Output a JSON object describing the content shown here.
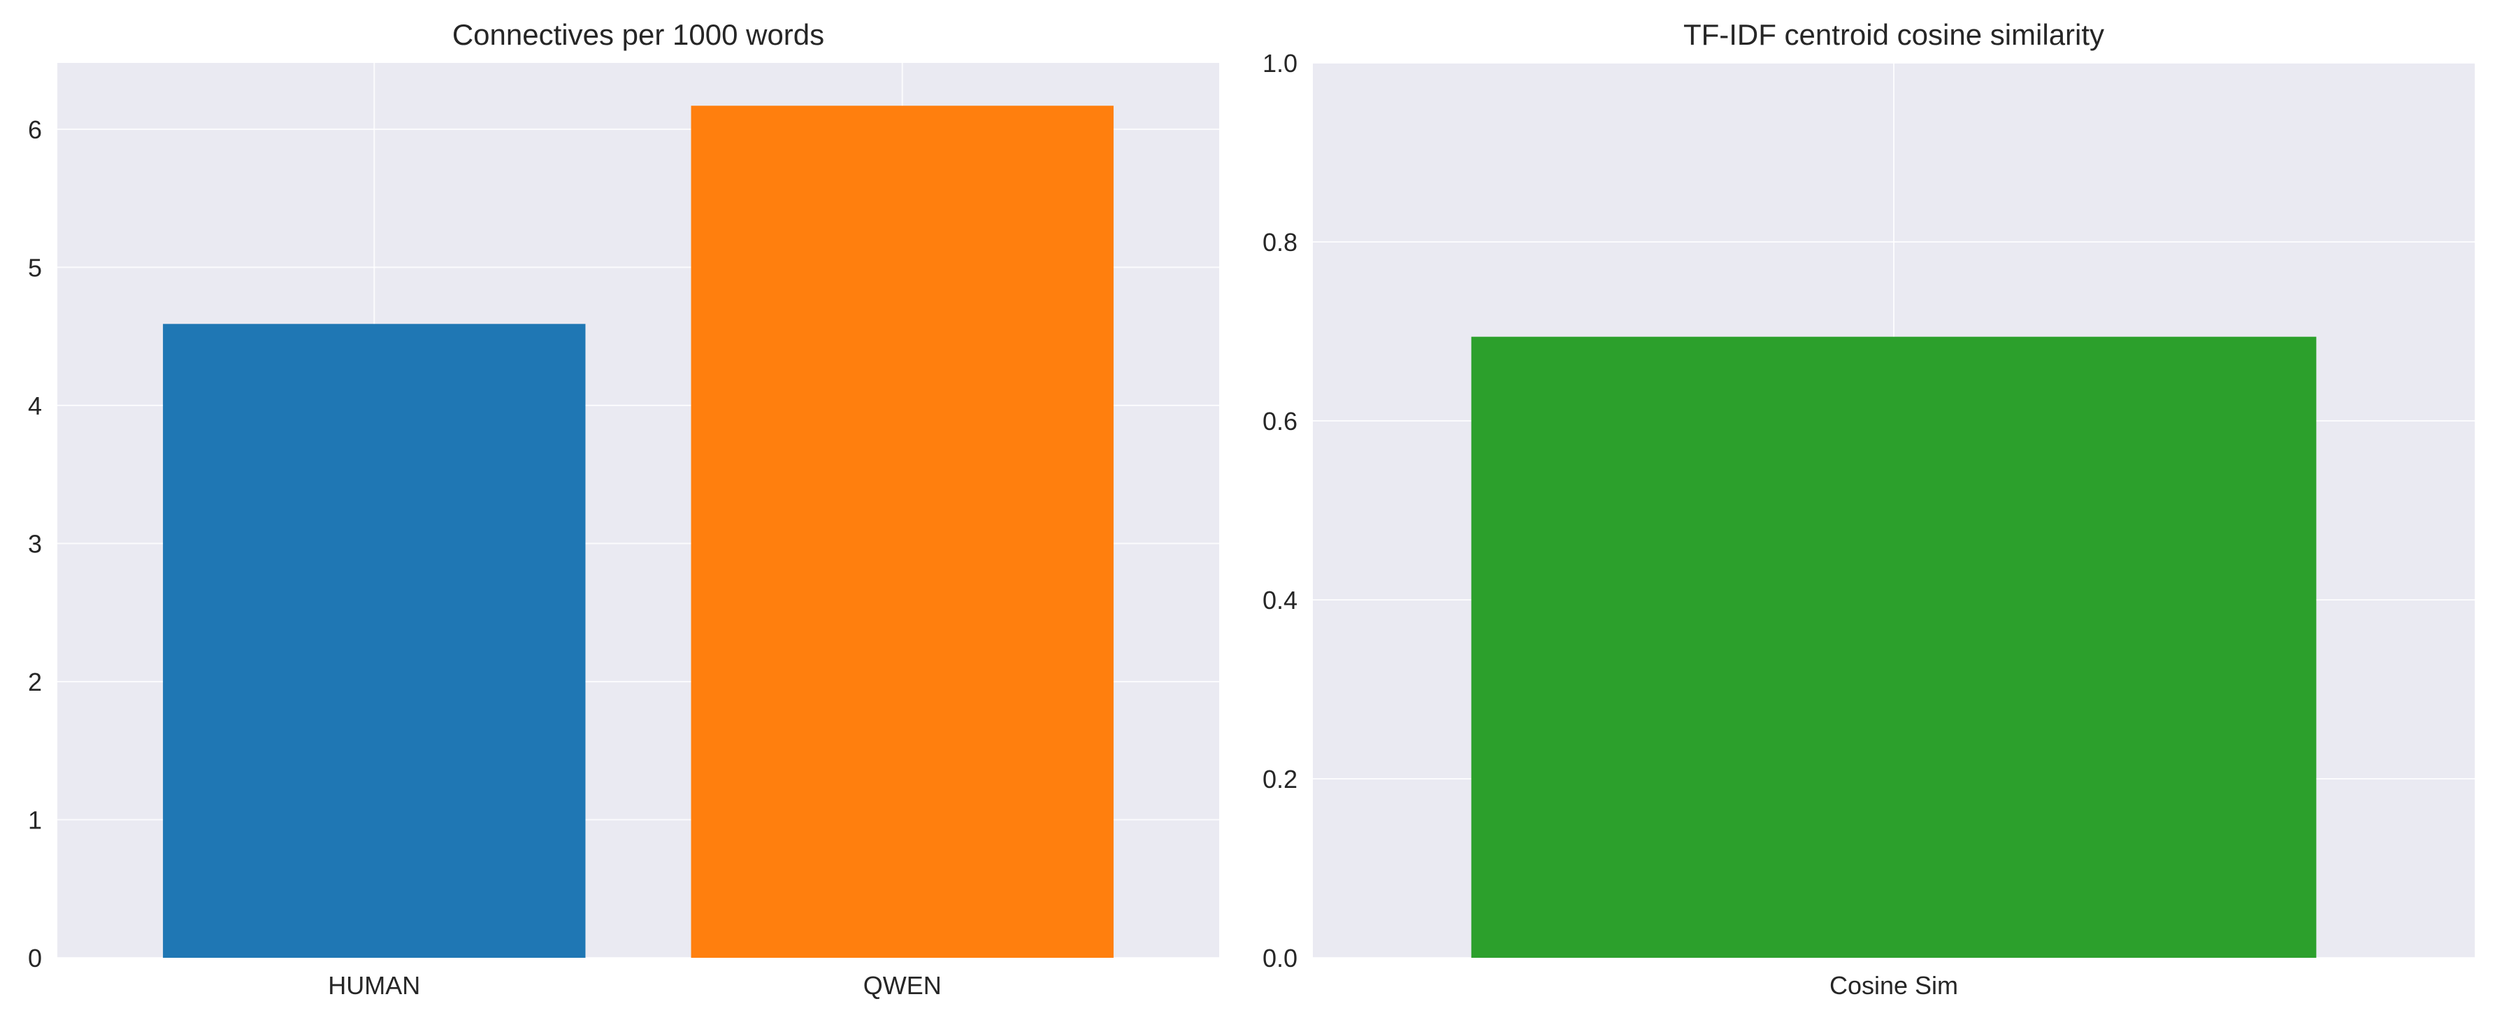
{
  "chart_data": [
    {
      "type": "bar",
      "title": "Connectives per 1000 words",
      "xlabel": "",
      "ylabel": "",
      "categories": [
        "HUMAN",
        "QWEN"
      ],
      "values": [
        4.59,
        6.17
      ],
      "colors": [
        "#1f77b4",
        "#ff7f0e"
      ],
      "ylim": [
        0,
        6.48
      ],
      "yticks": [
        0,
        1,
        2,
        3,
        4,
        5,
        6
      ],
      "ytick_labels": [
        "0",
        "1",
        "2",
        "3",
        "4",
        "5",
        "6"
      ],
      "grid": true,
      "legend": "none"
    },
    {
      "type": "bar",
      "title": "TF-IDF centroid cosine similarity",
      "xlabel": "",
      "ylabel": "",
      "categories": [
        "Cosine Sim"
      ],
      "values": [
        0.694
      ],
      "colors": [
        "#2ca02c"
      ],
      "ylim": [
        0,
        1
      ],
      "yticks": [
        0,
        0.2,
        0.4,
        0.6,
        0.8,
        1.0
      ],
      "ytick_labels": [
        "0.0",
        "0.2",
        "0.4",
        "0.6",
        "0.8",
        "1.0"
      ],
      "grid": true,
      "legend": "none"
    }
  ],
  "style": {
    "background": "#ffffff",
    "axes_background": "#eaeaf2",
    "grid_color": "#ffffff",
    "text_color": "#262626"
  }
}
